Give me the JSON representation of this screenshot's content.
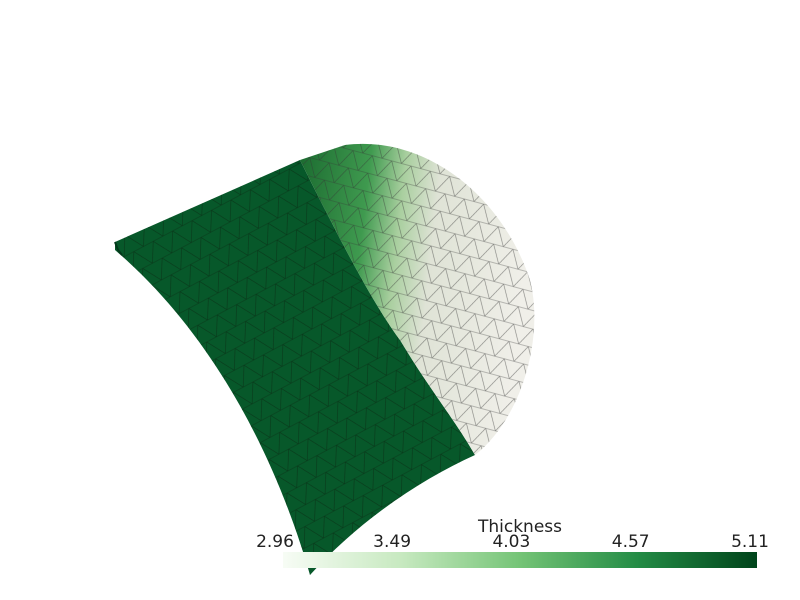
{
  "scalar_bar": {
    "title": "Thickness",
    "ticks": [
      2.96,
      3.49,
      4.03,
      4.57,
      5.11
    ]
  }
}
